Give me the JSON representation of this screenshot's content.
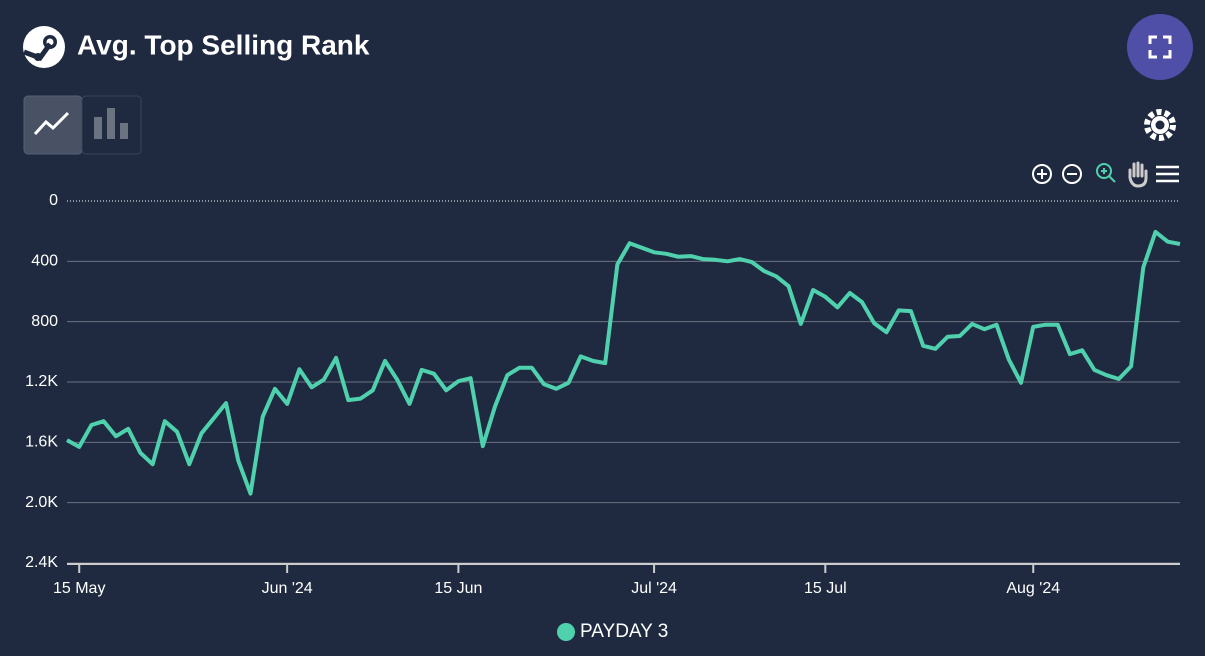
{
  "chart_data": {
    "type": "line",
    "title": "Avg. Top Selling Rank",
    "x": [
      "2024-05-14",
      "2024-05-15",
      "2024-05-16",
      "2024-05-17",
      "2024-05-18",
      "2024-05-19",
      "2024-05-20",
      "2024-05-21",
      "2024-05-22",
      "2024-05-23",
      "2024-05-24",
      "2024-05-25",
      "2024-05-26",
      "2024-05-27",
      "2024-05-28",
      "2024-05-29",
      "2024-05-30",
      "2024-05-31",
      "2024-06-01",
      "2024-06-02",
      "2024-06-03",
      "2024-06-04",
      "2024-06-05",
      "2024-06-06",
      "2024-06-07",
      "2024-06-08",
      "2024-06-09",
      "2024-06-10",
      "2024-06-11",
      "2024-06-12",
      "2024-06-13",
      "2024-06-14",
      "2024-06-15",
      "2024-06-16",
      "2024-06-17",
      "2024-06-18",
      "2024-06-19",
      "2024-06-20",
      "2024-06-21",
      "2024-06-22",
      "2024-06-23",
      "2024-06-24",
      "2024-06-25",
      "2024-06-26",
      "2024-06-27",
      "2024-06-28",
      "2024-06-29",
      "2024-06-30",
      "2024-07-01",
      "2024-07-02",
      "2024-07-03",
      "2024-07-04",
      "2024-07-05",
      "2024-07-06",
      "2024-07-07",
      "2024-07-08",
      "2024-07-09",
      "2024-07-10",
      "2024-07-11",
      "2024-07-12",
      "2024-07-13",
      "2024-07-14",
      "2024-07-15",
      "2024-07-16",
      "2024-07-17",
      "2024-07-18",
      "2024-07-19",
      "2024-07-20",
      "2024-07-21",
      "2024-07-22",
      "2024-07-23",
      "2024-07-24",
      "2024-07-25",
      "2024-07-26",
      "2024-07-27",
      "2024-07-28",
      "2024-07-29",
      "2024-07-30",
      "2024-07-31",
      "2024-08-01",
      "2024-08-02",
      "2024-08-03",
      "2024-08-04",
      "2024-08-05",
      "2024-08-06",
      "2024-08-07",
      "2024-08-08",
      "2024-08-09",
      "2024-08-10",
      "2024-08-11",
      "2024-08-12",
      "2024-08-13"
    ],
    "series": [
      {
        "name": "PAYDAY 3",
        "color": "#4fd1ae",
        "values": [
          1585,
          1630,
          1485,
          1460,
          1560,
          1510,
          1670,
          1745,
          1460,
          1530,
          1745,
          1540,
          1440,
          1340,
          1720,
          1940,
          1430,
          1245,
          1345,
          1115,
          1235,
          1185,
          1040,
          1320,
          1310,
          1255,
          1060,
          1185,
          1345,
          1120,
          1145,
          1255,
          1195,
          1175,
          1625,
          1360,
          1155,
          1105,
          1105,
          1215,
          1245,
          1205,
          1030,
          1060,
          1075,
          420,
          280,
          310,
          340,
          350,
          370,
          365,
          385,
          390,
          400,
          385,
          405,
          465,
          500,
          565,
          815,
          590,
          635,
          705,
          610,
          670,
          810,
          870,
          725,
          730,
          960,
          980,
          900,
          895,
          815,
          850,
          820,
          1050,
          1205,
          835,
          820,
          820,
          1015,
          990,
          1120,
          1155,
          1180,
          1095,
          440,
          205,
          270,
          285
        ]
      }
    ],
    "xlim": [
      "2024-05-14",
      "2024-08-13"
    ],
    "xticks": [
      {
        "value": "2024-05-15",
        "label": "15 May"
      },
      {
        "value": "2024-06-01",
        "label": "Jun '24"
      },
      {
        "value": "2024-06-15",
        "label": "15 Jun"
      },
      {
        "value": "2024-07-01",
        "label": "Jul '24"
      },
      {
        "value": "2024-07-15",
        "label": "15 Jul"
      },
      {
        "value": "2024-08-01",
        "label": "Aug '24"
      }
    ],
    "ylim": [
      0,
      2400
    ],
    "y_inverted": true,
    "yticks": [
      0,
      400,
      800,
      {
        "value": 1200,
        "label": "1.2K"
      },
      {
        "value": 1600,
        "label": "1.6K"
      },
      {
        "value": 2000,
        "label": "2.0K"
      },
      {
        "value": 2400,
        "label": "2.4K"
      }
    ],
    "grid": true,
    "legend": "bottom"
  }
}
